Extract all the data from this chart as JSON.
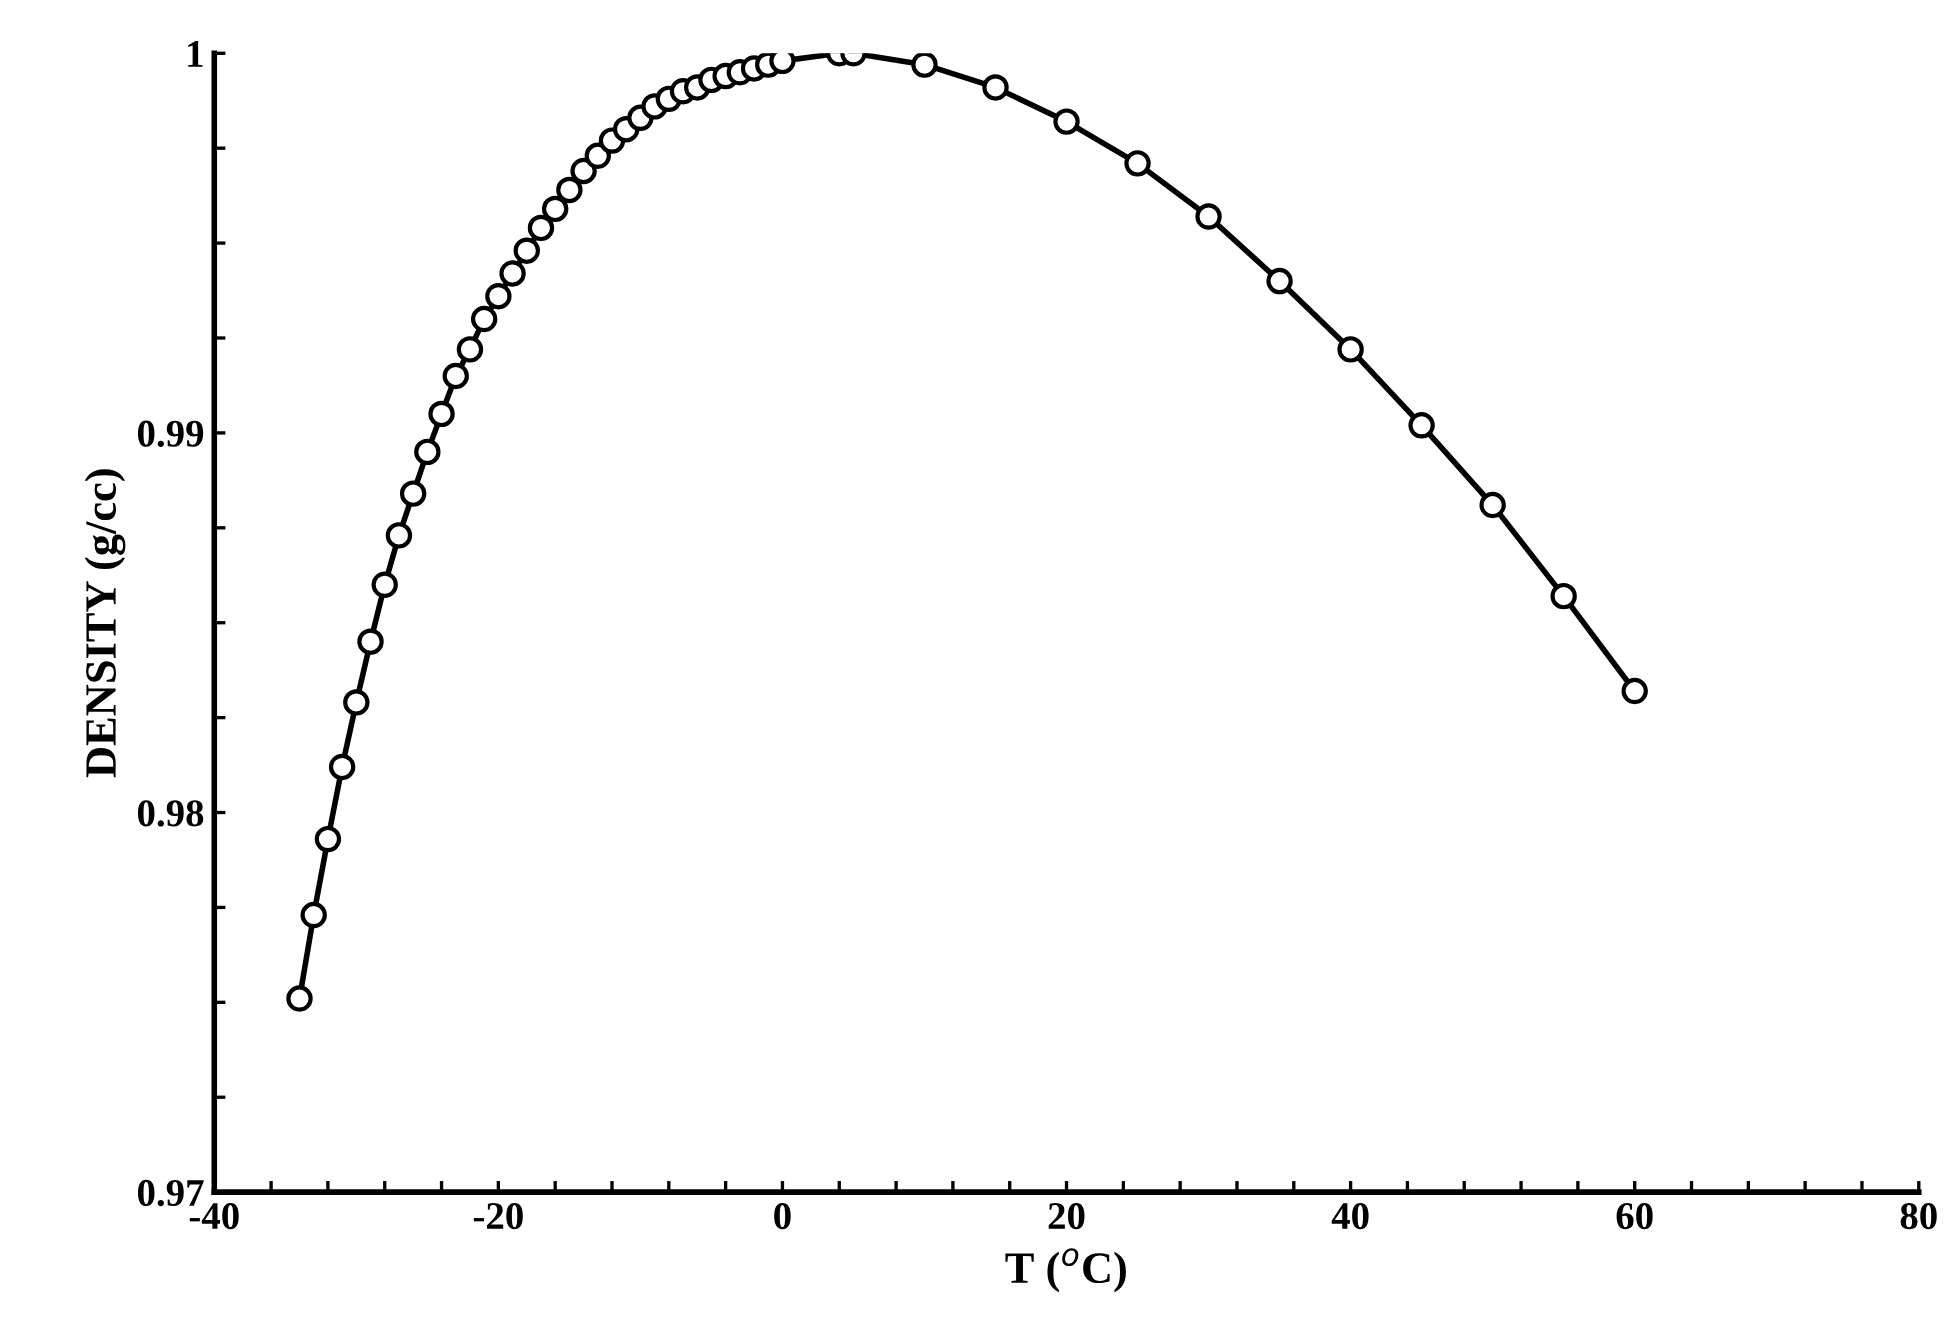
{
  "chart_data": {
    "type": "line",
    "xlabel": "T ($^{o}$C)",
    "ylabel": "DENSITY (g/cc)",
    "marker": "circle",
    "line_style": "solid",
    "xlim": [
      -40,
      80
    ],
    "ylim": [
      0.97,
      1.0
    ],
    "xticks": [
      -40,
      {
        "value": -36,
        "label": null
      },
      {
        "value": -32,
        "label": null
      },
      {
        "value": -28,
        "label": null
      },
      {
        "value": -24,
        "label": null
      },
      -20,
      {
        "value": -16,
        "label": null
      },
      {
        "value": -12,
        "label": null
      },
      {
        "value": -8,
        "label": null
      },
      {
        "value": -4,
        "label": null
      },
      0,
      {
        "value": 4,
        "label": null
      },
      {
        "value": 8,
        "label": null
      },
      {
        "value": 12,
        "label": null
      },
      {
        "value": 16,
        "label": null
      },
      20,
      {
        "value": 24,
        "label": null
      },
      {
        "value": 28,
        "label": null
      },
      {
        "value": 32,
        "label": null
      },
      {
        "value": 36,
        "label": null
      },
      40,
      {
        "value": 44,
        "label": null
      },
      {
        "value": 48,
        "label": null
      },
      {
        "value": 52,
        "label": null
      },
      {
        "value": 56,
        "label": null
      },
      60,
      {
        "value": 64,
        "label": null
      },
      {
        "value": 68,
        "label": null
      },
      {
        "value": 72,
        "label": null
      },
      {
        "value": 76,
        "label": null
      },
      80
    ],
    "yticks": [
      0.97,
      {
        "value": 0.9725,
        "label": null
      },
      {
        "value": 0.975,
        "label": null
      },
      {
        "value": 0.9775,
        "label": null
      },
      0.98,
      {
        "value": 0.9825,
        "label": null
      },
      {
        "value": 0.985,
        "label": null
      },
      {
        "value": 0.9875,
        "label": null
      },
      0.99,
      {
        "value": 0.9925,
        "label": null
      },
      {
        "value": 0.995,
        "label": null
      },
      {
        "value": 0.9975,
        "label": null
      },
      {
        "value": 1.0,
        "label": "1"
      }
    ],
    "series": [
      {
        "color": "#000000",
        "x": [
          -34,
          -33,
          -32,
          -31,
          -30,
          -29,
          -28,
          -27,
          -26,
          -25,
          -24,
          -23,
          -22,
          -21,
          -20,
          -19,
          -18,
          -17,
          -16,
          -15,
          -14,
          -13,
          -12,
          -11,
          -10,
          -9,
          -8,
          -7,
          -6,
          -5,
          -4,
          -3,
          -2,
          -1,
          0,
          4,
          5,
          10,
          15,
          20,
          25,
          30,
          35,
          40,
          45,
          50,
          55,
          60
        ],
        "values": [
          0.9751,
          0.9773,
          0.9793,
          0.9812,
          0.9829,
          0.9845,
          0.986,
          0.9873,
          0.9884,
          0.9895,
          0.9905,
          0.9915,
          0.9922,
          0.993,
          0.9936,
          0.9942,
          0.9948,
          0.9954,
          0.9959,
          0.9964,
          0.9969,
          0.9973,
          0.9977,
          0.998,
          0.9983,
          0.9986,
          0.9988,
          0.999,
          0.9991,
          0.9993,
          0.9994,
          0.9995,
          0.9996,
          0.9997,
          0.9998,
          1.0,
          1.0,
          0.9997,
          0.9991,
          0.9982,
          0.9971,
          0.9957,
          0.994,
          0.9922,
          0.9902,
          0.9881,
          0.9857,
          0.9832
        ]
      }
    ]
  }
}
